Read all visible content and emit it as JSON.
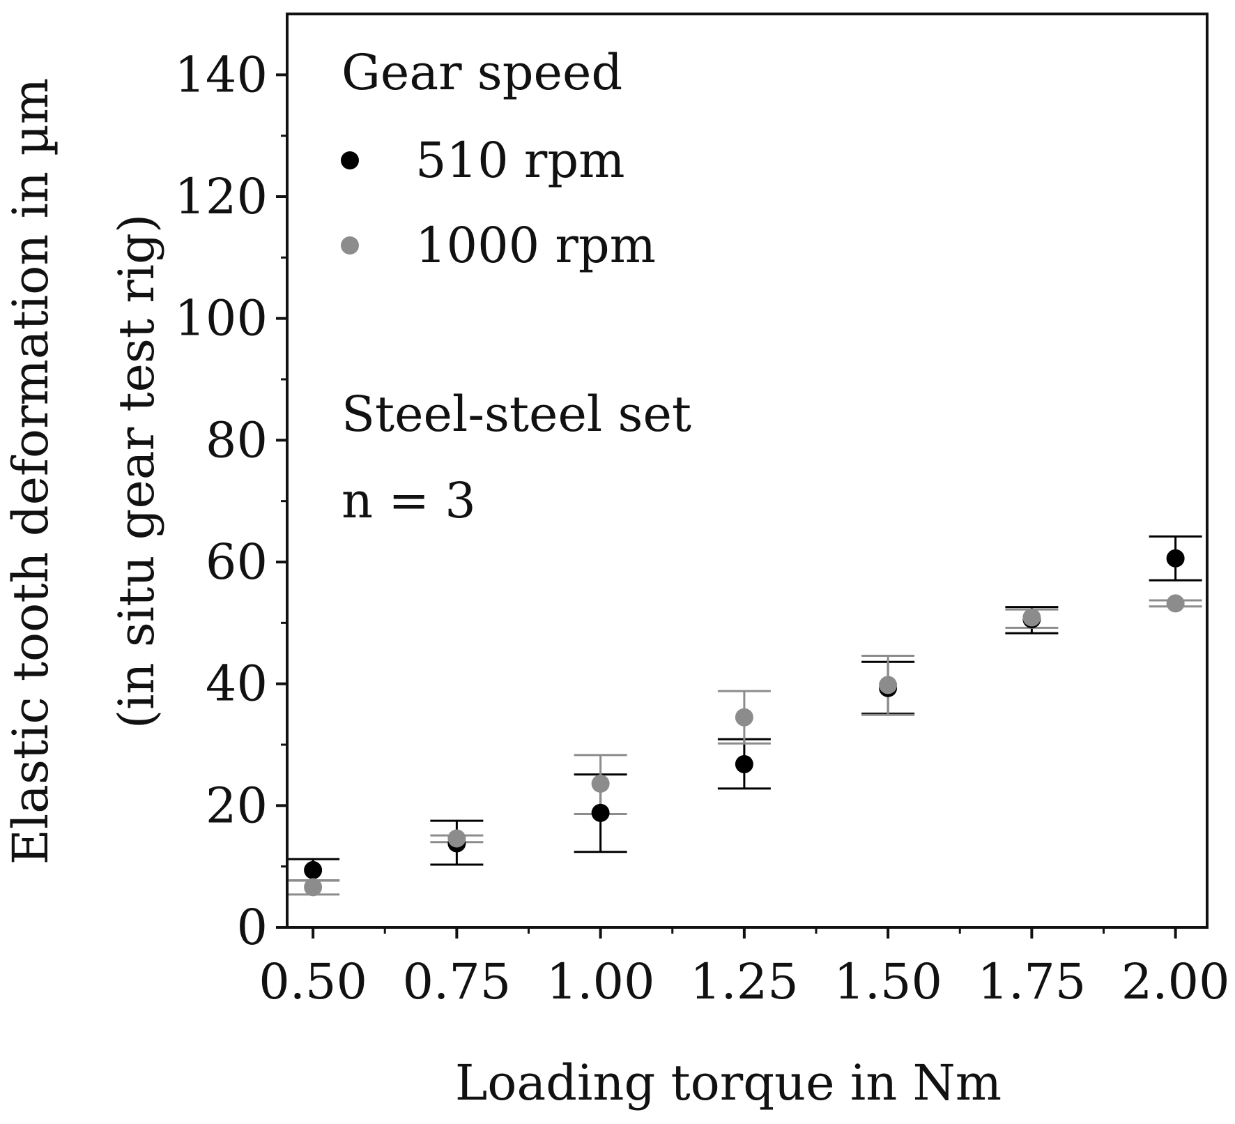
{
  "chart_data": {
    "type": "scatter",
    "title": "",
    "xlabel": "Loading torque in Nm",
    "ylabel": "Elastic tooth deformation in µm",
    "ylabel_sub": "(in situ gear test rig)",
    "xlim": [
      0.455,
      2.055
    ],
    "ylim": [
      0,
      150
    ],
    "x_ticks": [
      0.5,
      0.75,
      1.0,
      1.25,
      1.5,
      1.75,
      2.0
    ],
    "x_tick_labels": [
      "0.50",
      "0.75",
      "1.00",
      "1.25",
      "1.50",
      "1.75",
      "2.00"
    ],
    "x_minor_ticks": [
      0.625,
      0.875,
      1.125,
      1.375,
      1.625,
      1.875
    ],
    "y_ticks": [
      0,
      20,
      40,
      60,
      80,
      100,
      120,
      140
    ],
    "y_tick_labels": [
      "0",
      "20",
      "40",
      "60",
      "80",
      "100",
      "120",
      "140"
    ],
    "y_minor_ticks": [
      10,
      30,
      50,
      70,
      90,
      110,
      130
    ],
    "grid": false,
    "legend": {
      "title": "Gear speed",
      "placement": "top-left"
    },
    "annotations": [
      "Steel-steel set",
      "n = 3"
    ],
    "series": [
      {
        "name": "510 rpm",
        "color": "#000000",
        "x": [
          0.5,
          0.75,
          1.0,
          1.25,
          1.5,
          1.75,
          2.0
        ],
        "y": [
          9.4,
          13.8,
          18.8,
          26.8,
          39.3,
          50.6,
          60.6
        ],
        "err_low": [
          7.7,
          10.3,
          12.4,
          22.8,
          35.1,
          48.3,
          57.0
        ],
        "err_high": [
          11.2,
          17.5,
          25.1,
          30.9,
          43.6,
          52.6,
          64.2
        ]
      },
      {
        "name": "1000 rpm",
        "color": "#8c8c8c",
        "x": [
          0.5,
          0.75,
          1.0,
          1.25,
          1.5,
          1.75,
          2.0
        ],
        "y": [
          6.6,
          14.6,
          23.6,
          34.5,
          39.8,
          50.9,
          53.2
        ],
        "err_low": [
          5.4,
          14.0,
          18.6,
          30.2,
          34.9,
          49.2,
          52.7
        ],
        "err_high": [
          7.7,
          15.1,
          28.3,
          38.8,
          44.6,
          52.2,
          53.7
        ]
      }
    ]
  }
}
